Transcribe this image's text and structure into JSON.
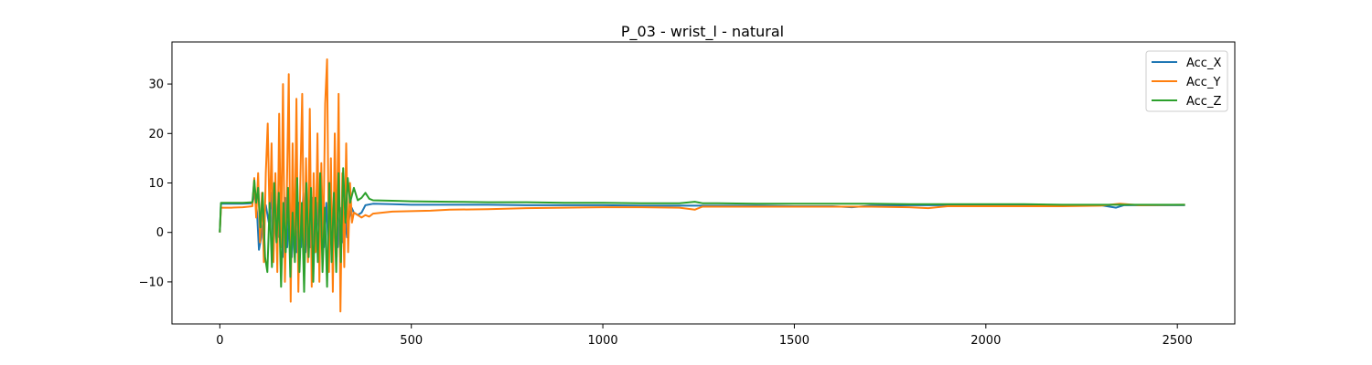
{
  "chart_data": {
    "type": "line",
    "title": "P_03 - wrist_l - natural",
    "xlabel": "",
    "ylabel": "",
    "xlim": [
      -125,
      2650
    ],
    "ylim": [
      -18.5,
      38.5
    ],
    "x_ticks": [
      0,
      500,
      1000,
      1500,
      2000,
      2500
    ],
    "x_tick_labels": [
      "0",
      "500",
      "1000",
      "1500",
      "2000",
      "2500"
    ],
    "y_ticks": [
      -10,
      0,
      10,
      20,
      30
    ],
    "y_tick_labels": [
      "−10",
      "0",
      "10",
      "20",
      "30"
    ],
    "grid": false,
    "legend_position": "top-right",
    "series": [
      {
        "name": "Acc_X",
        "color": "#1f77b4",
        "points": [
          [
            0,
            0
          ],
          [
            3,
            5.8
          ],
          [
            30,
            5.8
          ],
          [
            60,
            5.8
          ],
          [
            85,
            5.9
          ],
          [
            92,
            8
          ],
          [
            97,
            4
          ],
          [
            102,
            -3.5
          ],
          [
            108,
            -1
          ],
          [
            114,
            3
          ],
          [
            120,
            5.5
          ],
          [
            128,
            2
          ],
          [
            134,
            8
          ],
          [
            140,
            -4
          ],
          [
            146,
            6
          ],
          [
            152,
            -1
          ],
          [
            158,
            7
          ],
          [
            164,
            -5
          ],
          [
            170,
            7
          ],
          [
            176,
            -3
          ],
          [
            182,
            6
          ],
          [
            188,
            -5
          ],
          [
            194,
            7
          ],
          [
            200,
            -4
          ],
          [
            206,
            6
          ],
          [
            212,
            -3
          ],
          [
            218,
            8
          ],
          [
            224,
            -4
          ],
          [
            230,
            6
          ],
          [
            236,
            -3
          ],
          [
            242,
            7
          ],
          [
            248,
            -4
          ],
          [
            254,
            6
          ],
          [
            260,
            -2
          ],
          [
            266,
            8
          ],
          [
            272,
            -3
          ],
          [
            278,
            6
          ],
          [
            284,
            -4
          ],
          [
            290,
            7
          ],
          [
            296,
            -2
          ],
          [
            302,
            6
          ],
          [
            308,
            -3
          ],
          [
            314,
            5
          ],
          [
            320,
            -2
          ],
          [
            326,
            4
          ],
          [
            332,
            -1
          ],
          [
            338,
            3
          ],
          [
            344,
            5
          ],
          [
            350,
            4
          ],
          [
            360,
            3.5
          ],
          [
            370,
            4
          ],
          [
            380,
            5.5
          ],
          [
            400,
            5.8
          ],
          [
            450,
            5.7
          ],
          [
            500,
            5.6
          ],
          [
            600,
            5.6
          ],
          [
            700,
            5.6
          ],
          [
            800,
            5.5
          ],
          [
            900,
            5.5
          ],
          [
            1000,
            5.5
          ],
          [
            1100,
            5.4
          ],
          [
            1200,
            5.4
          ],
          [
            1300,
            5.4
          ],
          [
            1400,
            5.4
          ],
          [
            1500,
            5.3
          ],
          [
            1600,
            5.3
          ],
          [
            1650,
            5.1
          ],
          [
            1700,
            5.4
          ],
          [
            1800,
            5.5
          ],
          [
            1900,
            5.5
          ],
          [
            2000,
            5.5
          ],
          [
            2100,
            5.5
          ],
          [
            2200,
            5.5
          ],
          [
            2300,
            5.5
          ],
          [
            2340,
            5.0
          ],
          [
            2360,
            5.5
          ],
          [
            2400,
            5.5
          ],
          [
            2520,
            5.5
          ]
        ]
      },
      {
        "name": "Acc_Y",
        "color": "#ff7f0e",
        "points": [
          [
            0,
            0
          ],
          [
            3,
            5.0
          ],
          [
            30,
            5.0
          ],
          [
            60,
            5.1
          ],
          [
            85,
            5.3
          ],
          [
            90,
            11
          ],
          [
            95,
            3
          ],
          [
            100,
            12
          ],
          [
            105,
            -2
          ],
          [
            110,
            8
          ],
          [
            115,
            -6
          ],
          [
            120,
            12
          ],
          [
            125,
            22
          ],
          [
            130,
            2
          ],
          [
            135,
            18
          ],
          [
            140,
            -6
          ],
          [
            145,
            12
          ],
          [
            150,
            -8
          ],
          [
            155,
            24
          ],
          [
            160,
            -3
          ],
          [
            165,
            30
          ],
          [
            170,
            -10
          ],
          [
            175,
            8
          ],
          [
            180,
            32
          ],
          [
            185,
            -14
          ],
          [
            190,
            18
          ],
          [
            195,
            -5
          ],
          [
            200,
            27
          ],
          [
            205,
            -12
          ],
          [
            210,
            10
          ],
          [
            215,
            28
          ],
          [
            220,
            -9
          ],
          [
            225,
            15
          ],
          [
            230,
            -6
          ],
          [
            235,
            25
          ],
          [
            240,
            -11
          ],
          [
            245,
            12
          ],
          [
            250,
            -4
          ],
          [
            255,
            20
          ],
          [
            260,
            -10
          ],
          [
            265,
            14
          ],
          [
            270,
            -3
          ],
          [
            275,
            26
          ],
          [
            280,
            35
          ],
          [
            285,
            -8
          ],
          [
            290,
            15
          ],
          [
            295,
            -12
          ],
          [
            300,
            20
          ],
          [
            305,
            -5
          ],
          [
            310,
            28
          ],
          [
            315,
            -16
          ],
          [
            320,
            12
          ],
          [
            325,
            -7
          ],
          [
            330,
            18
          ],
          [
            335,
            -4
          ],
          [
            340,
            10
          ],
          [
            345,
            2
          ],
          [
            350,
            4
          ],
          [
            360,
            3.5
          ],
          [
            370,
            3.0
          ],
          [
            380,
            3.5
          ],
          [
            390,
            3.2
          ],
          [
            400,
            3.8
          ],
          [
            450,
            4.2
          ],
          [
            500,
            4.3
          ],
          [
            550,
            4.4
          ],
          [
            600,
            4.6
          ],
          [
            700,
            4.7
          ],
          [
            800,
            4.9
          ],
          [
            900,
            5.0
          ],
          [
            1000,
            5.1
          ],
          [
            1100,
            5.1
          ],
          [
            1200,
            5.0
          ],
          [
            1240,
            4.6
          ],
          [
            1260,
            5.2
          ],
          [
            1300,
            5.2
          ],
          [
            1400,
            5.2
          ],
          [
            1500,
            5.2
          ],
          [
            1600,
            5.2
          ],
          [
            1700,
            5.2
          ],
          [
            1800,
            5.1
          ],
          [
            1850,
            4.9
          ],
          [
            1900,
            5.3
          ],
          [
            2000,
            5.3
          ],
          [
            2100,
            5.3
          ],
          [
            2200,
            5.3
          ],
          [
            2300,
            5.4
          ],
          [
            2350,
            5.8
          ],
          [
            2400,
            5.5
          ],
          [
            2520,
            5.6
          ]
        ]
      },
      {
        "name": "Acc_Z",
        "color": "#2ca02c",
        "points": [
          [
            0,
            0
          ],
          [
            3,
            6.0
          ],
          [
            30,
            6.0
          ],
          [
            60,
            6.0
          ],
          [
            85,
            6.1
          ],
          [
            90,
            10.5
          ],
          [
            95,
            6
          ],
          [
            100,
            9
          ],
          [
            106,
            1
          ],
          [
            112,
            8
          ],
          [
            118,
            -5
          ],
          [
            124,
            -8
          ],
          [
            130,
            6
          ],
          [
            136,
            -7
          ],
          [
            142,
            10
          ],
          [
            148,
            -2
          ],
          [
            154,
            8
          ],
          [
            160,
            -11
          ],
          [
            166,
            6
          ],
          [
            172,
            -4
          ],
          [
            178,
            9
          ],
          [
            184,
            -9
          ],
          [
            190,
            4
          ],
          [
            196,
            -6
          ],
          [
            202,
            11
          ],
          [
            208,
            -8
          ],
          [
            214,
            6
          ],
          [
            220,
            -12
          ],
          [
            226,
            10
          ],
          [
            232,
            -5
          ],
          [
            238,
            9
          ],
          [
            244,
            -10
          ],
          [
            250,
            7
          ],
          [
            256,
            -6
          ],
          [
            262,
            12
          ],
          [
            268,
            -8
          ],
          [
            274,
            5
          ],
          [
            280,
            -11
          ],
          [
            286,
            10
          ],
          [
            292,
            -6
          ],
          [
            298,
            8
          ],
          [
            304,
            -8
          ],
          [
            310,
            12
          ],
          [
            316,
            -6
          ],
          [
            322,
            13
          ],
          [
            328,
            2
          ],
          [
            334,
            11
          ],
          [
            340,
            6
          ],
          [
            350,
            9
          ],
          [
            360,
            6.5
          ],
          [
            370,
            7
          ],
          [
            380,
            8
          ],
          [
            390,
            6.8
          ],
          [
            400,
            6.5
          ],
          [
            450,
            6.4
          ],
          [
            500,
            6.3
          ],
          [
            600,
            6.2
          ],
          [
            700,
            6.1
          ],
          [
            800,
            6.1
          ],
          [
            900,
            6.0
          ],
          [
            1000,
            6.0
          ],
          [
            1100,
            5.9
          ],
          [
            1200,
            5.9
          ],
          [
            1240,
            6.2
          ],
          [
            1260,
            5.9
          ],
          [
            1300,
            5.9
          ],
          [
            1400,
            5.8
          ],
          [
            1500,
            5.8
          ],
          [
            1600,
            5.8
          ],
          [
            1700,
            5.8
          ],
          [
            1800,
            5.7
          ],
          [
            1900,
            5.7
          ],
          [
            2000,
            5.7
          ],
          [
            2100,
            5.7
          ],
          [
            2200,
            5.6
          ],
          [
            2300,
            5.6
          ],
          [
            2400,
            5.6
          ],
          [
            2520,
            5.6
          ]
        ]
      }
    ]
  }
}
